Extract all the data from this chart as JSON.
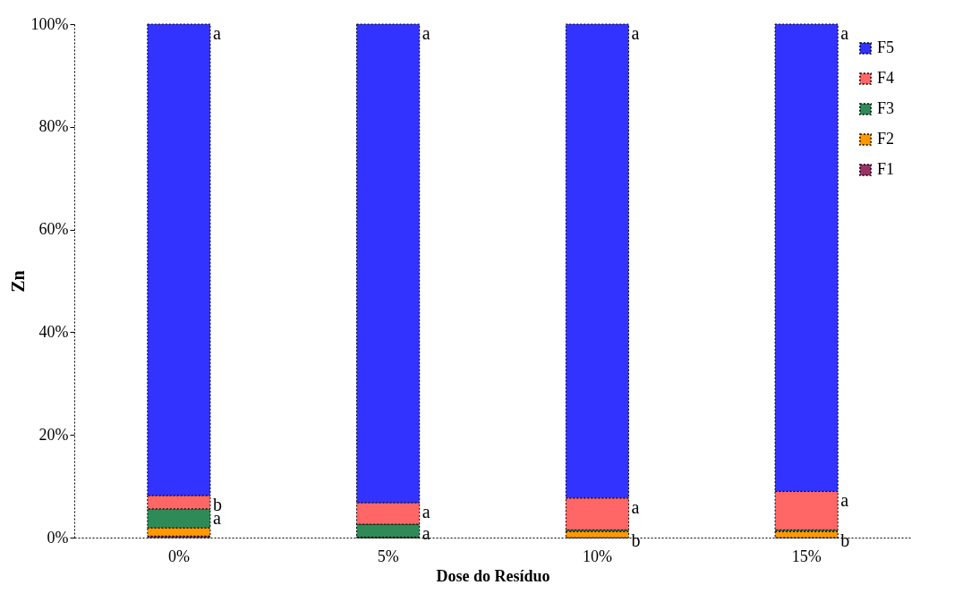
{
  "chart_data": {
    "type": "bar",
    "stacked": true,
    "xlabel": "Dose do Resíduo",
    "ylabel": "Zn",
    "categories": [
      "0%",
      "5%",
      "10%",
      "15%"
    ],
    "series": [
      {
        "name": "F1",
        "color": "#993366",
        "values": [
          0.3,
          0,
          0,
          0
        ]
      },
      {
        "name": "F2",
        "color": "#ff9900",
        "values": [
          1.6,
          0.1,
          1.2,
          1.2
        ]
      },
      {
        "name": "F3",
        "color": "#2e8b57",
        "values": [
          3.7,
          2.5,
          0.3,
          0.3
        ]
      },
      {
        "name": "F4",
        "color": "#ff6666",
        "values": [
          2.6,
          4.2,
          6.2,
          7.5
        ]
      },
      {
        "name": "F5",
        "color": "#3333ff",
        "values": [
          91.8,
          93.2,
          92.3,
          91
        ]
      }
    ],
    "ylim": [
      0,
      100
    ],
    "yticks": [
      {
        "value": 0,
        "label": "0%"
      },
      {
        "value": 20,
        "label": "20%"
      },
      {
        "value": 40,
        "label": "40%"
      },
      {
        "value": 60,
        "label": "60%"
      },
      {
        "value": 80,
        "label": "80%"
      },
      {
        "value": 100,
        "label": "100%"
      }
    ],
    "legend": "top right",
    "grid": false,
    "annotations": [
      {
        "text": "a",
        "x": "0%",
        "y": 100
      },
      {
        "text": "a",
        "x": "5%",
        "y": 100
      },
      {
        "text": "a",
        "x": "10%",
        "y": 100
      },
      {
        "text": "a",
        "x": "15%",
        "y": 100
      },
      {
        "text": "b",
        "x": "0%",
        "y": 8.2
      },
      {
        "text": "a",
        "x": "5%",
        "y": 6.8
      },
      {
        "text": "a",
        "x": "10%",
        "y": 7.7
      },
      {
        "text": "a",
        "x": "15%",
        "y": 9.0
      },
      {
        "text": "a",
        "x": "0%",
        "y": 5.6
      },
      {
        "text": "a",
        "x": "5%",
        "y": 2.6
      },
      {
        "text": "b",
        "x": "10%",
        "y": 1.2
      },
      {
        "text": "b",
        "x": "15%",
        "y": 1.2
      }
    ]
  }
}
